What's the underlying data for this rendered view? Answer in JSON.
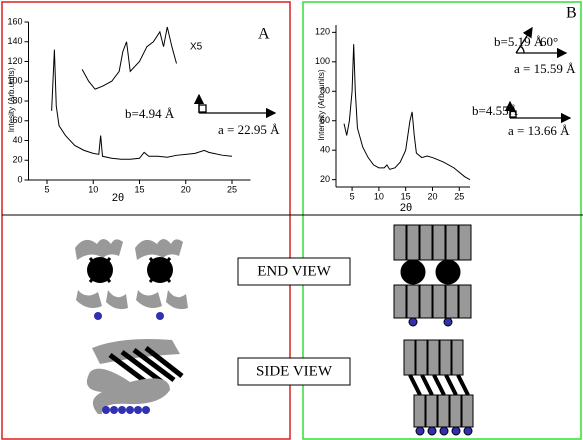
{
  "chart_data": [
    {
      "type": "line",
      "panel": "A",
      "x_label": "2θ",
      "y_label": "Intesity (Arb.units)",
      "xlim": [
        3,
        27
      ],
      "xticks": [
        5,
        10,
        15,
        20,
        25
      ],
      "ylim": [
        0,
        160
      ],
      "yticks": [
        0,
        20,
        40,
        60,
        80,
        100,
        120,
        140,
        160
      ],
      "series": [
        {
          "color": "#000000",
          "x": [
            5.5,
            5.8,
            6,
            6.3,
            7,
            8,
            9,
            10,
            10.6,
            10.8,
            11,
            12,
            13,
            14,
            15,
            15.5,
            16,
            17,
            18,
            19,
            20,
            21,
            22,
            22.5,
            23,
            24,
            25
          ],
          "values": [
            70,
            132,
            75,
            55,
            45,
            35,
            30,
            27,
            26,
            45,
            24,
            22,
            21,
            21,
            22,
            28,
            24,
            24,
            23,
            25,
            26,
            27,
            30,
            28,
            27,
            25,
            24
          ]
        },
        {
          "color": "#000000",
          "x": [
            8.8,
            9.5,
            10.2,
            11,
            12,
            12.8,
            13.2,
            13.6,
            14,
            15,
            15.8,
            16.5,
            17.2,
            17.6,
            18,
            18.5,
            19
          ],
          "values": [
            112,
            100,
            92,
            95,
            100,
            110,
            130,
            140,
            110,
            120,
            135,
            140,
            150,
            135,
            155,
            135,
            118
          ]
        }
      ],
      "annotations": [
        "X5",
        "b=4.94 Å",
        "a = 22.95 Å"
      ]
    },
    {
      "type": "line",
      "panel": "B",
      "x_label": "2θ",
      "y_label": "Intensity (Arb. units)",
      "xlim": [
        2,
        27
      ],
      "xticks": [
        5,
        10,
        15,
        20,
        25
      ],
      "ylim": [
        15,
        125
      ],
      "yticks": [
        20,
        40,
        60,
        80,
        100,
        120
      ],
      "series": [
        {
          "color": "#000000",
          "x": [
            3.5,
            4,
            4.5,
            5,
            5.3,
            5.6,
            6,
            7,
            8,
            9,
            10,
            11,
            11.5,
            12,
            13,
            14,
            15,
            15.8,
            16.2,
            16.6,
            17,
            18,
            19,
            20,
            22,
            24,
            26,
            27
          ],
          "values": [
            58,
            50,
            60,
            80,
            112,
            80,
            55,
            42,
            35,
            30,
            28,
            28,
            30,
            27,
            28,
            32,
            40,
            60,
            66,
            50,
            38,
            35,
            36,
            35,
            32,
            28,
            22,
            20
          ]
        }
      ],
      "annotations": [
        "b=5.19 Å",
        "60°",
        "a = 15.59 Å",
        "b=4.55Å",
        "a = 13.66 Å"
      ]
    }
  ],
  "diagram": {
    "end_view": "END VIEW",
    "side_view": "SIDE VIEW"
  }
}
